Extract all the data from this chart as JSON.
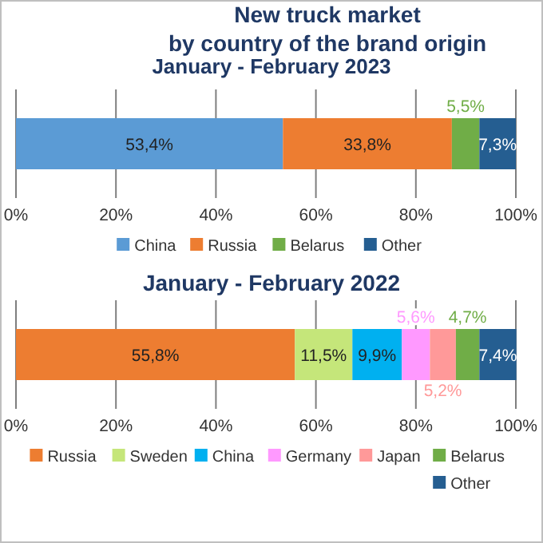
{
  "chart_data": [
    {
      "type": "bar",
      "title": "New truck market\nby country of the brand origin",
      "subtitle": "January - February 2023",
      "orientation": "horizontal",
      "stacked": true,
      "categories": [
        null
      ],
      "xlim": [
        0,
        100
      ],
      "xticks": [
        {
          "value": 0,
          "label": "0%"
        },
        {
          "value": 20,
          "label": "20%"
        },
        {
          "value": 40,
          "label": "40%"
        },
        {
          "value": 60,
          "label": "60%"
        },
        {
          "value": 80,
          "label": "80%"
        },
        {
          "value": 100,
          "label": "100%"
        }
      ],
      "grid": "x",
      "legend": "bottom",
      "series": [
        {
          "name": "China",
          "color": "#5b9bd5",
          "values": [
            53.4
          ],
          "value_labels": [
            "53,4%"
          ]
        },
        {
          "name": "Russia",
          "color": "#ed7d31",
          "values": [
            33.8
          ],
          "value_labels": [
            "33,8%"
          ]
        },
        {
          "name": "Belarus",
          "color": "#70ad47",
          "values": [
            5.5
          ],
          "value_labels": [
            "5,5%"
          ]
        },
        {
          "name": "Other",
          "color": "#255e91",
          "values": [
            7.3
          ],
          "value_labels": [
            "7,3%"
          ]
        }
      ]
    },
    {
      "type": "bar",
      "title": "January - February 2022",
      "orientation": "horizontal",
      "stacked": true,
      "categories": [
        null
      ],
      "xlim": [
        0,
        100
      ],
      "xticks": [
        {
          "value": 0,
          "label": "0%"
        },
        {
          "value": 20,
          "label": "20%"
        },
        {
          "value": 40,
          "label": "40%"
        },
        {
          "value": 60,
          "label": "60%"
        },
        {
          "value": 80,
          "label": "80%"
        },
        {
          "value": 100,
          "label": "100%"
        }
      ],
      "grid": "x",
      "legend": "bottom",
      "series": [
        {
          "name": "Russia",
          "color": "#ed7d31",
          "values": [
            55.8
          ],
          "value_labels": [
            "55,8%"
          ]
        },
        {
          "name": "Sweden",
          "color": "#c5e67a",
          "values": [
            11.5
          ],
          "value_labels": [
            "11,5%"
          ]
        },
        {
          "name": "China",
          "color": "#00b0f0",
          "values": [
            9.9
          ],
          "value_labels": [
            "9,9%"
          ]
        },
        {
          "name": "Germany",
          "color": "#ff99ff",
          "values": [
            5.6
          ],
          "value_labels": [
            "5,6%"
          ]
        },
        {
          "name": "Japan",
          "color": "#ff9999",
          "values": [
            5.2
          ],
          "value_labels": [
            "5,2%"
          ]
        },
        {
          "name": "Belarus",
          "color": "#70ad47",
          "values": [
            4.7
          ],
          "value_labels": [
            "4,7%"
          ]
        },
        {
          "name": "Other",
          "color": "#255e91",
          "values": [
            7.4
          ],
          "value_labels": [
            "7,4%"
          ]
        }
      ]
    }
  ]
}
